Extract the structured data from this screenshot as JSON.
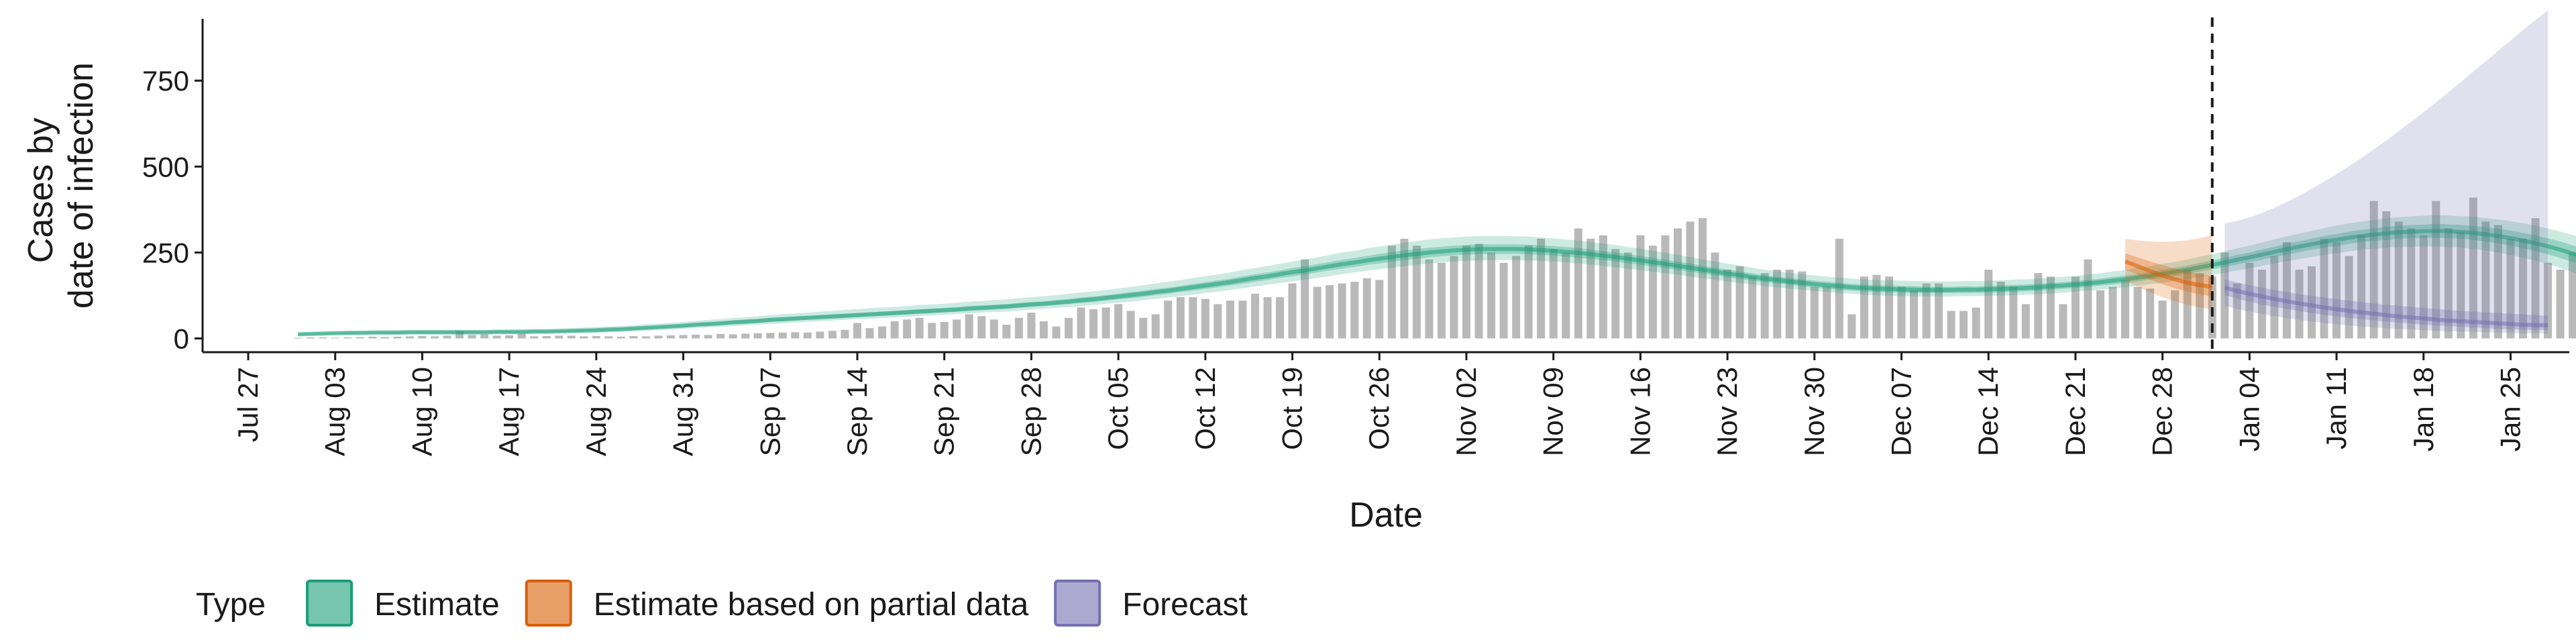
{
  "chart_data": {
    "type": "area",
    "xlabel": "Date",
    "ylabel_lines": [
      "Cases by",
      "date of infection"
    ],
    "x_ticks": [
      "Jul 27",
      "Aug 03",
      "Aug 10",
      "Aug 17",
      "Aug 24",
      "Aug 31",
      "Sep 07",
      "Sep 14",
      "Sep 21",
      "Sep 28",
      "Oct 05",
      "Oct 12",
      "Oct 19",
      "Oct 26",
      "Nov 02",
      "Nov 09",
      "Nov 16",
      "Nov 23",
      "Nov 30",
      "Dec 07",
      "Dec 14",
      "Dec 21",
      "Dec 28",
      "Jan 04",
      "Jan 11",
      "Jan 18",
      "Jan 25"
    ],
    "y_ticks": [
      0,
      250,
      500,
      750
    ],
    "ylim": [
      -40,
      930
    ],
    "x_start_date": "2020-07-27",
    "reference_line_date": "2021-01-01",
    "legend": {
      "title": "Type",
      "position": "bottom",
      "items": [
        {
          "label": "Estimate",
          "color": "#1b9e77"
        },
        {
          "label": "Estimate based on partial data",
          "color": "#d95f02"
        },
        {
          "label": "Forecast",
          "color": "#7570b3"
        }
      ]
    },
    "reported_cases": {
      "start_date": "2020-07-31",
      "values": [
        2,
        3,
        3,
        2,
        3,
        4,
        5,
        4,
        5,
        6,
        7,
        6,
        8,
        22,
        10,
        12,
        8,
        9,
        14,
        6,
        7,
        8,
        8,
        6,
        7,
        6,
        5,
        7,
        6,
        8,
        9,
        10,
        11,
        10,
        13,
        12,
        14,
        15,
        16,
        17,
        18,
        17,
        20,
        22,
        25,
        45,
        30,
        35,
        50,
        55,
        60,
        45,
        48,
        55,
        70,
        65,
        55,
        40,
        60,
        75,
        50,
        35,
        60,
        90,
        85,
        90,
        100,
        80,
        60,
        70,
        110,
        120,
        120,
        115,
        100,
        110,
        110,
        130,
        120,
        120,
        160,
        230,
        150,
        155,
        160,
        165,
        175,
        170,
        270,
        290,
        270,
        230,
        220,
        240,
        270,
        275,
        250,
        220,
        240,
        270,
        290,
        260,
        250,
        320,
        290,
        300,
        260,
        250,
        300,
        270,
        300,
        320,
        340,
        350,
        250,
        200,
        210,
        180,
        190,
        200,
        200,
        195,
        150,
        150,
        290,
        70,
        180,
        185,
        180,
        150,
        140,
        160,
        160,
        80,
        80,
        90,
        200,
        165,
        150,
        100,
        190,
        180,
        100,
        180,
        230,
        140,
        150,
        170,
        150,
        145,
        110,
        140,
        200,
        190,
        180,
        250,
        160,
        220,
        200,
        240,
        280,
        200,
        210,
        290,
        280,
        240,
        300,
        400,
        370,
        340,
        320,
        300,
        400,
        320,
        310,
        410,
        340,
        330,
        290,
        290,
        350,
        220,
        200,
        250,
        300,
        310
      ]
    },
    "estimate": {
      "start_date": "2020-07-31",
      "median": [
        12,
        13,
        14,
        15,
        16,
        16,
        17,
        17,
        17,
        18,
        18,
        18,
        18,
        18,
        18,
        18,
        19,
        19,
        19,
        20,
        20,
        21,
        22,
        23,
        24,
        26,
        27,
        29,
        31,
        33,
        35,
        37,
        40,
        42,
        44,
        47,
        49,
        51,
        54,
        56,
        58,
        60,
        62,
        64,
        66,
        68,
        70,
        72,
        74,
        76,
        78,
        80,
        82,
        84,
        87,
        89,
        91,
        93,
        96,
        99,
        101,
        104,
        107,
        111,
        114,
        118,
        122,
        126,
        130,
        135,
        139,
        144,
        149,
        154,
        159,
        164,
        170,
        176,
        181,
        187,
        193,
        198,
        204,
        210,
        216,
        221,
        227,
        232,
        237,
        242,
        246,
        250,
        253,
        256,
        258,
        260,
        260,
        260,
        260,
        259,
        257,
        255,
        252,
        249,
        245,
        241,
        237,
        232,
        227,
        222,
        217,
        211,
        206,
        200,
        195,
        189,
        184,
        179,
        174,
        170,
        166,
        162,
        158,
        155,
        152,
        149,
        147,
        145,
        144,
        143,
        142,
        141,
        141,
        141,
        142,
        142,
        143,
        144,
        146,
        147,
        149,
        152,
        154,
        157,
        160,
        164,
        168,
        172,
        177,
        182,
        188,
        194,
        200,
        207,
        214,
        221,
        229,
        236,
        244,
        252,
        260,
        267,
        274,
        281,
        287,
        293,
        298,
        302,
        306,
        309,
        311,
        312,
        313,
        312,
        310,
        307,
        303,
        298,
        292,
        285,
        277,
        268,
        258,
        247,
        236,
        224
      ],
      "lower50": [
        10,
        11,
        12,
        13,
        13,
        14,
        14,
        14,
        14,
        15,
        15,
        15,
        15,
        15,
        15,
        15,
        16,
        16,
        16,
        17,
        17,
        18,
        19,
        20,
        21,
        22,
        23,
        25,
        27,
        29,
        31,
        33,
        35,
        37,
        39,
        41,
        43,
        45,
        48,
        50,
        52,
        54,
        56,
        58,
        60,
        62,
        64,
        66,
        68,
        70,
        72,
        74,
        76,
        78,
        80,
        82,
        84,
        86,
        89,
        92,
        94,
        97,
        100,
        103,
        106,
        110,
        114,
        117,
        121,
        126,
        130,
        135,
        139,
        144,
        149,
        154,
        159,
        165,
        170,
        176,
        181,
        186,
        192,
        198,
        203,
        208,
        214,
        218,
        223,
        228,
        232,
        236,
        239,
        242,
        244,
        245,
        246,
        246,
        246,
        245,
        243,
        241,
        238,
        235,
        231,
        228,
        224,
        219,
        214,
        210,
        205,
        199,
        194,
        189,
        184,
        178,
        173,
        168,
        164,
        160,
        156,
        152,
        148,
        145,
        142,
        139,
        137,
        135,
        134,
        133,
        132,
        132,
        132,
        132,
        132,
        133,
        133,
        134,
        136,
        137,
        139,
        142,
        144,
        147,
        150,
        154,
        157,
        161,
        166,
        171,
        176,
        182,
        188,
        194,
        201,
        208,
        215,
        222,
        229,
        237,
        244,
        251,
        258,
        264,
        270,
        275,
        280,
        284,
        287,
        290,
        292,
        293,
        293,
        292,
        290,
        287,
        282,
        277,
        270,
        263,
        254,
        245,
        234,
        223,
        211,
        199
      ],
      "upper50": [
        14,
        15,
        16,
        17,
        18,
        18,
        19,
        19,
        20,
        20,
        21,
        21,
        21,
        21,
        21,
        21,
        22,
        22,
        22,
        23,
        23,
        24,
        25,
        26,
        27,
        29,
        30,
        32,
        34,
        36,
        38,
        41,
        44,
        46,
        48,
        51,
        54,
        56,
        59,
        61,
        64,
        66,
        68,
        70,
        72,
        74,
        76,
        78,
        80,
        83,
        85,
        87,
        89,
        91,
        94,
        96,
        98,
        100,
        103,
        106,
        108,
        112,
        115,
        119,
        122,
        126,
        130,
        135,
        139,
        144,
        148,
        153,
        159,
        164,
        169,
        174,
        181,
        187,
        192,
        198,
        205,
        210,
        216,
        222,
        229,
        234,
        240,
        246,
        251,
        256,
        260,
        264,
        267,
        270,
        272,
        275,
        274,
        274,
        274,
        273,
        271,
        269,
        266,
        263,
        259,
        254,
        250,
        245,
        240,
        234,
        229,
        223,
        218,
        211,
        206,
        200,
        195,
        190,
        184,
        180,
        176,
        172,
        168,
        165,
        162,
        159,
        157,
        155,
        154,
        153,
        152,
        150,
        150,
        150,
        152,
        151,
        153,
        154,
        156,
        157,
        159,
        162,
        164,
        167,
        170,
        174,
        179,
        183,
        188,
        193,
        200,
        206,
        212,
        220,
        227,
        234,
        243,
        250,
        259,
        267,
        276,
        283,
        290,
        298,
        304,
        311,
        316,
        320,
        325,
        328,
        330,
        331,
        333,
        332,
        330,
        327,
        324,
        319,
        314,
        307,
        300,
        291,
        282,
        271,
        261,
        249
      ],
      "lower90": [
        7,
        8,
        9,
        10,
        10,
        10,
        11,
        11,
        11,
        11,
        11,
        11,
        11,
        11,
        11,
        11,
        12,
        12,
        12,
        13,
        13,
        14,
        15,
        16,
        16,
        18,
        19,
        21,
        22,
        24,
        26,
        28,
        30,
        32,
        34,
        36,
        38,
        40,
        42,
        44,
        46,
        48,
        50,
        52,
        54,
        56,
        57,
        59,
        61,
        63,
        65,
        67,
        69,
        71,
        73,
        75,
        77,
        78,
        81,
        84,
        86,
        89,
        91,
        94,
        97,
        101,
        104,
        107,
        111,
        115,
        119,
        123,
        127,
        132,
        136,
        141,
        146,
        151,
        156,
        161,
        166,
        171,
        176,
        181,
        187,
        192,
        197,
        201,
        206,
        210,
        214,
        218,
        221,
        224,
        226,
        227,
        228,
        228,
        228,
        227,
        226,
        224,
        221,
        218,
        215,
        211,
        207,
        203,
        199,
        194,
        190,
        185,
        180,
        175,
        171,
        166,
        161,
        157,
        152,
        149,
        145,
        142,
        138,
        135,
        132,
        130,
        127,
        126,
        124,
        123,
        123,
        122,
        122,
        122,
        123,
        123,
        124,
        125,
        126,
        127,
        129,
        131,
        133,
        136,
        139,
        142,
        145,
        149,
        153,
        158,
        162,
        168,
        173,
        179,
        185,
        191,
        198,
        204,
        211,
        218,
        225,
        231,
        237,
        243,
        248,
        253,
        258,
        261,
        264,
        266,
        267,
        268,
        268,
        266,
        264,
        260,
        256,
        250,
        243,
        235,
        226,
        216,
        205,
        193,
        181,
        168
      ],
      "upper90": [
        17,
        18,
        20,
        21,
        22,
        23,
        23,
        24,
        24,
        25,
        25,
        25,
        25,
        25,
        25,
        25,
        26,
        26,
        27,
        28,
        28,
        29,
        30,
        32,
        33,
        35,
        36,
        38,
        41,
        43,
        45,
        48,
        51,
        54,
        56,
        59,
        62,
        65,
        68,
        71,
        73,
        75,
        78,
        80,
        83,
        85,
        88,
        90,
        92,
        94,
        97,
        99,
        101,
        104,
        107,
        109,
        112,
        114,
        117,
        120,
        123,
        126,
        130,
        134,
        137,
        141,
        146,
        150,
        155,
        160,
        165,
        170,
        176,
        181,
        186,
        192,
        199,
        205,
        211,
        217,
        224,
        230,
        236,
        243,
        250,
        255,
        262,
        268,
        273,
        279,
        283,
        288,
        291,
        294,
        296,
        298,
        298,
        298,
        297,
        296,
        294,
        291,
        288,
        285,
        280,
        276,
        272,
        266,
        261,
        255,
        249,
        243,
        237,
        230,
        224,
        218,
        212,
        206,
        200,
        196,
        191,
        187,
        183,
        180,
        177,
        174,
        172,
        170,
        169,
        168,
        167,
        166,
        166,
        166,
        167,
        167,
        168,
        169,
        171,
        172,
        174,
        177,
        179,
        182,
        186,
        190,
        195,
        199,
        205,
        210,
        217,
        223,
        230,
        238,
        245,
        253,
        262,
        270,
        279,
        288,
        297,
        305,
        313,
        321,
        328,
        335,
        340,
        345,
        350,
        353,
        355,
        357,
        359,
        358,
        356,
        354,
        350,
        346,
        341,
        335,
        328,
        320,
        311,
        301,
        291,
        280
      ]
    },
    "partial": {
      "start_date": "2020-12-25",
      "median": [
        224,
        210,
        196,
        183,
        172,
        162,
        155,
        150
      ],
      "lower50": [
        200,
        185,
        171,
        158,
        146,
        136,
        128,
        122
      ],
      "upper50": [
        248,
        236,
        224,
        213,
        203,
        194,
        187,
        182
      ],
      "lower90": [
        168,
        150,
        134,
        120,
        108,
        98,
        90,
        84
      ],
      "upper90": [
        290,
        285,
        282,
        281,
        282,
        286,
        292,
        300
      ]
    },
    "forecast": {
      "start_date": "2021-01-02",
      "median": [
        148,
        138,
        130,
        122,
        115,
        108,
        102,
        96,
        90,
        85,
        80,
        76,
        72,
        68,
        64,
        61,
        58,
        55,
        52,
        50,
        48,
        46,
        44,
        42,
        40,
        39,
        38
      ],
      "lower50": [
        126,
        116,
        107,
        99,
        92,
        86,
        80,
        74,
        69,
        64,
        60,
        56,
        52,
        49,
        46,
        43,
        40,
        38,
        36,
        34,
        32,
        30,
        28,
        27,
        26,
        25,
        24
      ],
      "upper50": [
        172,
        163,
        155,
        148,
        141,
        135,
        129,
        124,
        119,
        114,
        110,
        106,
        102,
        98,
        95,
        92,
        89,
        86,
        83,
        80,
        78,
        76,
        74,
        72,
        70,
        68,
        66
      ],
      "lower90": [
        95,
        86,
        78,
        71,
        65,
        59,
        54,
        49,
        45,
        41,
        38,
        35,
        32,
        30,
        28,
        26,
        24,
        22,
        21,
        20,
        19,
        18,
        17,
        16,
        15,
        15,
        14
      ],
      "upper90": [
        335,
        342,
        352,
        365,
        380,
        397,
        415,
        435,
        456,
        478,
        501,
        525,
        550,
        576,
        603,
        630,
        658,
        687,
        716,
        746,
        776,
        806,
        837,
        867,
        897,
        926,
        955
      ]
    }
  }
}
